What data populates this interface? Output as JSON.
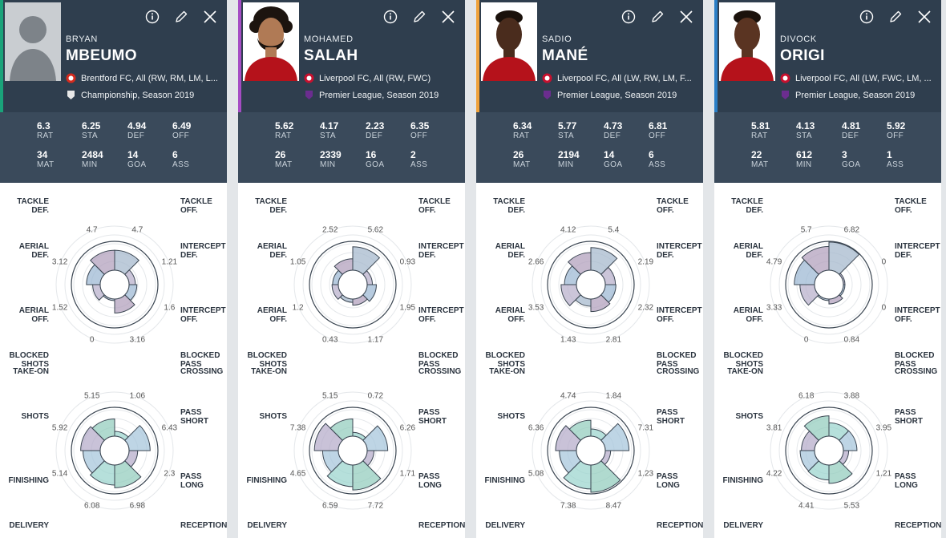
{
  "stat_labels": {
    "rat": "RAT",
    "sta": "STA",
    "def": "DEF",
    "off": "OFF",
    "mat": "MAT",
    "min": "MIN",
    "goa": "GOA",
    "ass": "ASS"
  },
  "defense_labels": [
    [
      "TACKLE",
      "OFF."
    ],
    [
      "INTERCEPT",
      "DEF."
    ],
    [
      "INTERCEPT",
      "OFF."
    ],
    [
      "BLOCKED",
      "PASS"
    ],
    [
      "BLOCKED",
      "SHOTS"
    ],
    [
      "AERIAL",
      "OFF."
    ],
    [
      "AERIAL",
      "DEF."
    ],
    [
      "TACKLE",
      "DEF."
    ]
  ],
  "attack_labels": [
    [
      "CROSSING"
    ],
    [
      "PASS",
      "SHORT"
    ],
    [
      "PASS",
      "LONG"
    ],
    [
      "RECEPTION"
    ],
    [
      "DELIVERY"
    ],
    [
      "FINISHING"
    ],
    [
      "SHOTS"
    ],
    [
      "TAKE-ON"
    ]
  ],
  "players": [
    {
      "first": "BRYAN",
      "last": "MBEUMO",
      "accent": "#1aa37a",
      "team_line": "Brentford FC, All (RW, RM, LM, L...",
      "league_line": "Championship, Season 2019",
      "stats": {
        "rat": "6.3",
        "sta": "6.25",
        "def": "4.94",
        "off": "6.49",
        "mat": "34",
        "min": "2484",
        "goa": "14",
        "ass": "6"
      },
      "defense": [
        "4.7",
        "1.21",
        "1.6",
        "3.16",
        "0",
        "1.52",
        "3.12",
        "4.7"
      ],
      "attack": [
        "1.06",
        "6.43",
        "2.3",
        "6.98",
        "6.08",
        "5.14",
        "5.92",
        "5.15"
      ]
    },
    {
      "first": "MOHAMED",
      "last": "SALAH",
      "accent": "#a54cc4",
      "team_line": "Liverpool FC, All (RW, FWC)",
      "league_line": "Premier League, Season 2019",
      "stats": {
        "rat": "5.62",
        "sta": "4.17",
        "def": "2.23",
        "off": "6.35",
        "mat": "26",
        "min": "2339",
        "goa": "16",
        "ass": "2"
      },
      "defense": [
        "5.62",
        "0.93",
        "1.95",
        "1.17",
        "0.43",
        "1.2",
        "1.05",
        "2.52"
      ],
      "attack": [
        "0.72",
        "6.26",
        "1.71",
        "7.72",
        "6.59",
        "4.65",
        "7.38",
        "5.15"
      ]
    },
    {
      "first": "SADIO",
      "last": "MANÉ",
      "accent": "#f0a23a",
      "team_line": "Liverpool FC, All (LW, RW, LM, F...",
      "league_line": "Premier League, Season 2019",
      "stats": {
        "rat": "6.34",
        "sta": "5.77",
        "def": "4.73",
        "off": "6.81",
        "mat": "26",
        "min": "2194",
        "goa": "14",
        "ass": "6"
      },
      "defense": [
        "5.4",
        "2.19",
        "2.32",
        "2.81",
        "1.43",
        "3.53",
        "2.66",
        "4.12"
      ],
      "attack": [
        "1.84",
        "7.31",
        "1.23",
        "8.47",
        "7.38",
        "5.08",
        "6.36",
        "4.74"
      ]
    },
    {
      "first": "DIVOCK",
      "last": "ORIGI",
      "accent": "#2a7fc6",
      "team_line": "Liverpool FC, All (LW, FWC, LM, ...",
      "league_line": "Premier League, Season 2019",
      "stats": {
        "rat": "5.81",
        "sta": "4.13",
        "def": "4.81",
        "off": "5.92",
        "mat": "22",
        "min": "612",
        "goa": "3",
        "ass": "1"
      },
      "defense": [
        "6.82",
        "0",
        "0",
        "0.84",
        "0",
        "3.33",
        "4.79",
        "5.7"
      ],
      "attack": [
        "3.88",
        "3.95",
        "1.21",
        "5.53",
        "4.41",
        "4.22",
        "3.81",
        "6.18"
      ]
    }
  ]
}
